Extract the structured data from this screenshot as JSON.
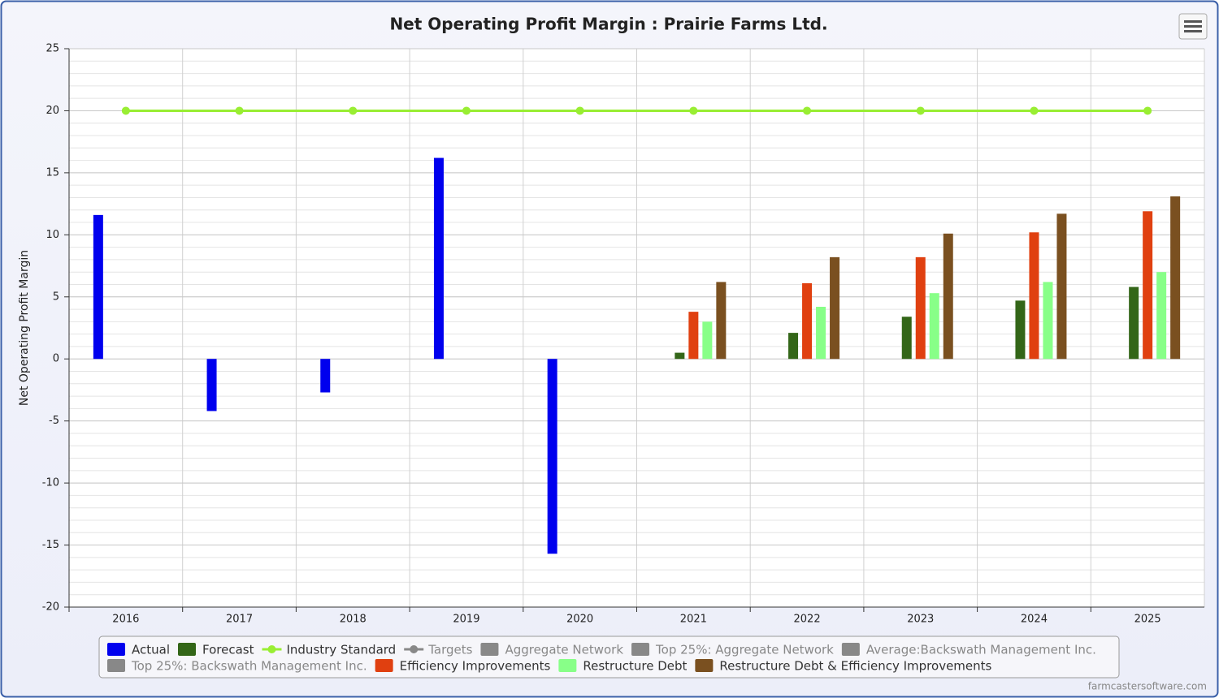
{
  "chart_data": {
    "type": "bar",
    "title": "Net Operating Profit Margin : Prairie Farms Ltd.",
    "y_label": "Net Operating Profit Margin",
    "credit": "farmcastersoftware.com",
    "categories": [
      "2016",
      "2017",
      "2018",
      "2019",
      "2020",
      "2021",
      "2022",
      "2023",
      "2024",
      "2025"
    ],
    "ylim": [
      -20,
      25
    ],
    "yticks": [
      -20,
      -15,
      -10,
      -5,
      0,
      5,
      10,
      15,
      20,
      25
    ],
    "minor_tick_interval": 1,
    "grid": true,
    "legend": "bottom",
    "series": [
      {
        "name": "Actual",
        "type": "bar",
        "color": "#0000ee",
        "values": [
          11.6,
          -4.2,
          -2.7,
          16.2,
          -15.7,
          null,
          null,
          null,
          null,
          null
        ]
      },
      {
        "name": "Forecast",
        "type": "bar",
        "color": "#336618",
        "values": [
          null,
          null,
          null,
          null,
          null,
          0.5,
          2.1,
          3.4,
          4.7,
          5.8
        ]
      },
      {
        "name": "Industry Standard",
        "type": "line",
        "color": "#99ee33",
        "values": [
          20,
          20,
          20,
          20,
          20,
          20,
          20,
          20,
          20,
          20
        ]
      },
      {
        "name": "Targets",
        "type": "line",
        "color": "#888888",
        "hidden": true,
        "values": [
          null,
          null,
          null,
          null,
          null,
          null,
          null,
          null,
          null,
          null
        ]
      },
      {
        "name": "Aggregate Network",
        "type": "bar",
        "color": "#888888",
        "hidden": true,
        "values": [
          null,
          null,
          null,
          null,
          null,
          null,
          null,
          null,
          null,
          null
        ]
      },
      {
        "name": "Top 25%: Aggregate Network",
        "type": "bar",
        "color": "#888888",
        "hidden": true,
        "values": [
          null,
          null,
          null,
          null,
          null,
          null,
          null,
          null,
          null,
          null
        ]
      },
      {
        "name": "Average:Backswath Management Inc.",
        "type": "bar",
        "color": "#888888",
        "hidden": true,
        "values": [
          null,
          null,
          null,
          null,
          null,
          null,
          null,
          null,
          null,
          null
        ]
      },
      {
        "name": "Top 25%: Backswath Management Inc.",
        "type": "bar",
        "color": "#888888",
        "hidden": true,
        "values": [
          null,
          null,
          null,
          null,
          null,
          null,
          null,
          null,
          null,
          null
        ]
      },
      {
        "name": "Efficiency Improvements",
        "type": "bar",
        "color": "#e04010",
        "values": [
          null,
          null,
          null,
          null,
          null,
          3.8,
          6.1,
          8.2,
          10.2,
          11.9
        ]
      },
      {
        "name": "Restructure Debt",
        "type": "bar",
        "color": "#88ff88",
        "values": [
          null,
          null,
          null,
          null,
          null,
          3.0,
          4.2,
          5.3,
          6.2,
          7.0
        ]
      },
      {
        "name": "Restructure Debt & Efficiency Improvements",
        "type": "bar",
        "color": "#7a5020",
        "values": [
          null,
          null,
          null,
          null,
          null,
          6.2,
          8.2,
          10.1,
          11.7,
          13.1
        ]
      }
    ]
  }
}
